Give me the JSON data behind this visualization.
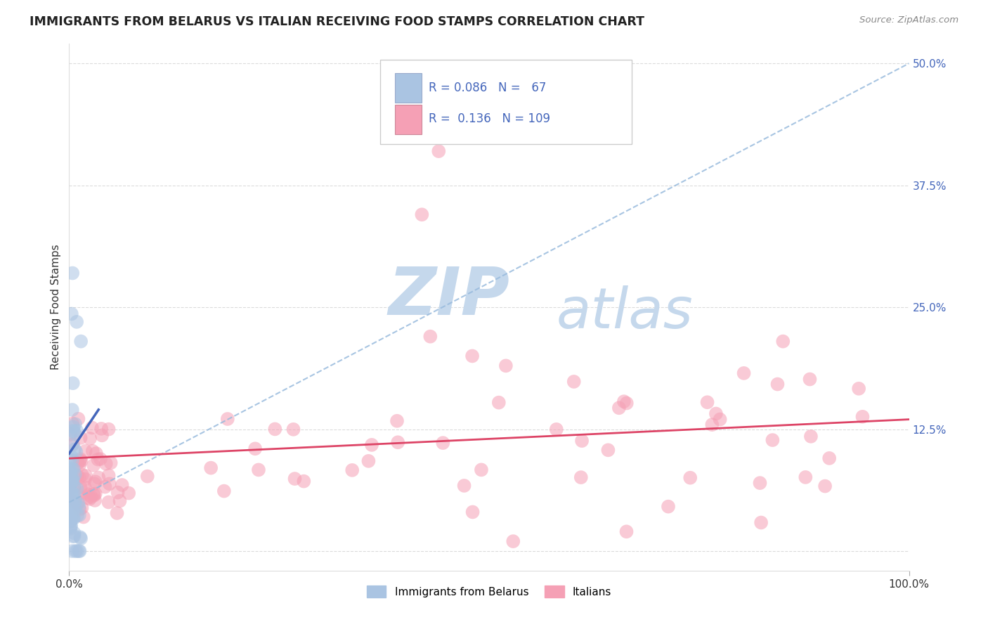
{
  "title": "IMMIGRANTS FROM BELARUS VS ITALIAN RECEIVING FOOD STAMPS CORRELATION CHART",
  "source": "Source: ZipAtlas.com",
  "ylabel": "Receiving Food Stamps",
  "xlabel": "",
  "xlim": [
    0,
    1.0
  ],
  "ylim": [
    -0.02,
    0.52
  ],
  "ytick_vals": [
    0.0,
    0.125,
    0.25,
    0.375,
    0.5
  ],
  "ytick_labels": [
    "",
    "12.5%",
    "25.0%",
    "37.5%",
    "50.0%"
  ],
  "xtick_vals": [
    0.0,
    1.0
  ],
  "xtick_labels": [
    "0.0%",
    "100.0%"
  ],
  "legend_label1": "Immigrants from Belarus",
  "legend_label2": "Italians",
  "R1": 0.086,
  "N1": 67,
  "R2": 0.136,
  "N2": 109,
  "color1": "#aac4e2",
  "color2": "#f5a0b5",
  "line_color1_solid": "#4466bb",
  "line_color1_dashed": "#99bbdd",
  "line_color2": "#dd4466",
  "watermark_zip": "ZIP",
  "watermark_atlas": "atlas",
  "watermark_color_zip": "#c5d8ec",
  "watermark_color_atlas": "#c5d8ec",
  "background_color": "#ffffff",
  "grid_color": "#cccccc",
  "title_color": "#222222",
  "source_color": "#888888",
  "tick_color": "#4466bb",
  "title_fontsize": 12.5,
  "axis_label_fontsize": 11,
  "tick_fontsize": 11,
  "legend_fontsize": 11,
  "blue_trend_x0": 0.0,
  "blue_trend_y0": 0.05,
  "blue_trend_x1": 1.0,
  "blue_trend_y1": 0.5,
  "pink_trend_x0": 0.0,
  "pink_trend_y0": 0.095,
  "pink_trend_x1": 1.0,
  "pink_trend_y1": 0.135
}
